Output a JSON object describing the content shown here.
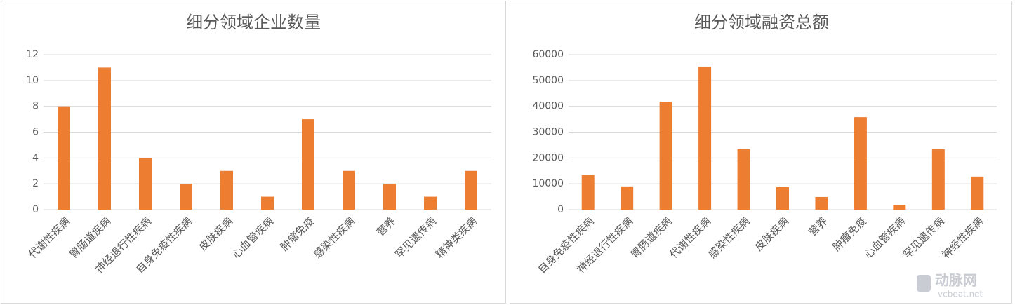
{
  "chart_data": [
    {
      "type": "bar",
      "title": "细分领域企业数量",
      "categories": [
        "代谢性疾病",
        "胃肠道疾病",
        "神经退行性疾病",
        "自身免疫性疾病",
        "皮肤疾病",
        "心血管疾病",
        "肿瘤免疫",
        "感染性疾病",
        "营养",
        "罕见遗传病",
        "精神类疾病"
      ],
      "values": [
        8,
        11,
        4,
        2,
        3,
        1,
        7,
        3,
        2,
        1,
        3
      ],
      "color": "#ed7d31",
      "ylim": [
        0,
        12
      ],
      "yticks": [
        0,
        2,
        4,
        6,
        8,
        10,
        12
      ],
      "grid": true
    },
    {
      "type": "bar",
      "title": "细分领域融资总额",
      "categories": [
        "自身免疫性疾病",
        "神经退行性疾病",
        "胃肠道疾病",
        "代谢性疾病",
        "感染性疾病",
        "皮肤疾病",
        "营养",
        "肿瘤免疫",
        "心血管疾病",
        "罕见遗传病",
        "神经性疾病"
      ],
      "values": [
        13300,
        9000,
        41800,
        55400,
        23400,
        8700,
        4900,
        35800,
        1900,
        23400,
        12800
      ],
      "color": "#ed7d31",
      "ylim": [
        0,
        60000
      ],
      "yticks": [
        0,
        10000,
        20000,
        30000,
        40000,
        50000,
        60000
      ],
      "grid": true
    }
  ],
  "watermark": {
    "name": "动脉网",
    "site": "vcbeat.net"
  }
}
